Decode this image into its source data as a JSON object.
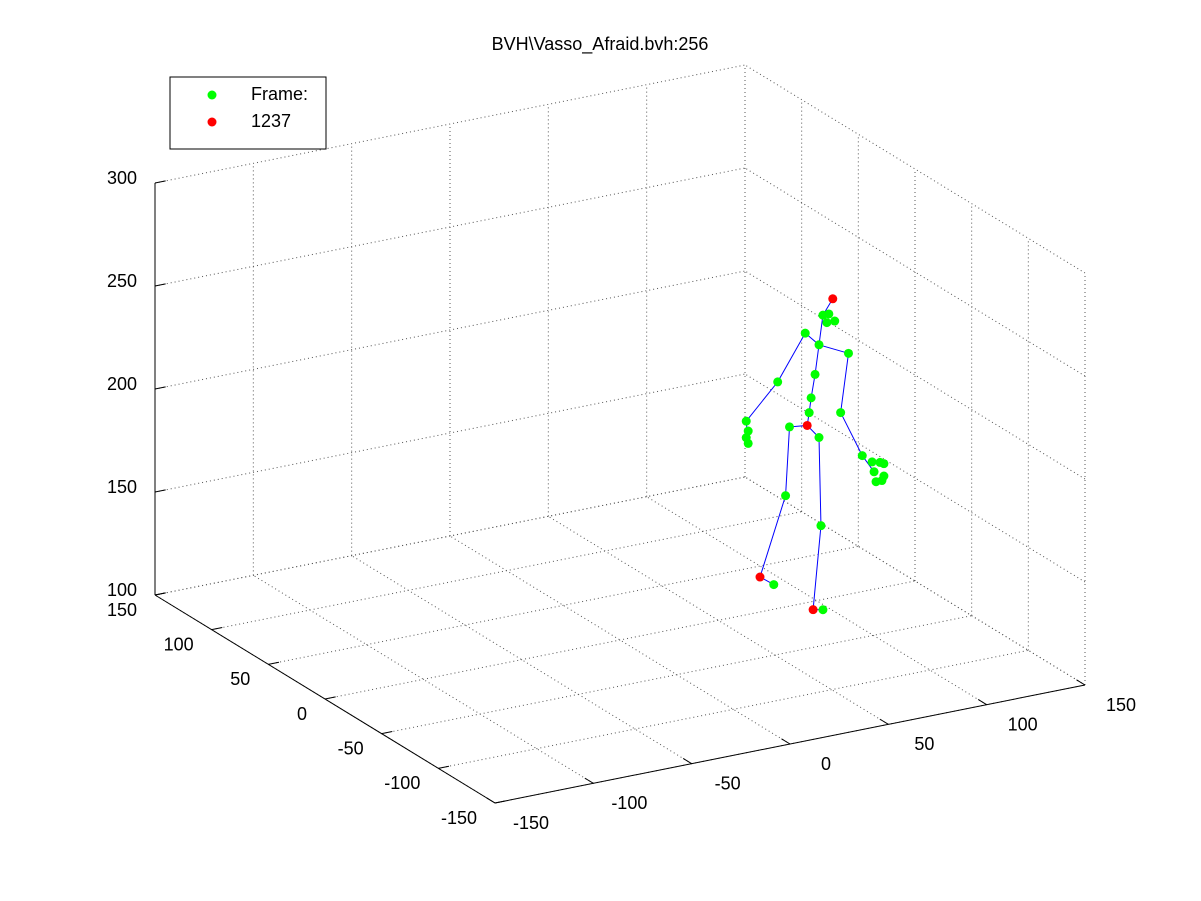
{
  "chart_data": {
    "type": "scatter3d",
    "title": "BVH\\Vasso_Afraid.bvh:256",
    "xlim": [
      -150,
      150
    ],
    "xticks": [
      -150,
      -100,
      -50,
      0,
      50,
      100,
      150
    ],
    "ylim": [
      -150,
      150
    ],
    "yticks": [
      -150,
      -100,
      -50,
      0,
      50,
      100,
      150
    ],
    "zlim": [
      100,
      300
    ],
    "zticks": [
      100,
      150,
      200,
      250,
      300
    ],
    "grid": true,
    "legend_position": "northwest",
    "series": [
      {
        "color": "#0000ff",
        "mode": "line",
        "x": [
          59,
          75,
          89,
          96,
          111,
          107,
          118,
          124,
          null,
          103,
          98,
          96,
          94,
          92,
          91,
          90,
          null,
          73,
          66,
          79,
          81,
          90,
          96,
          97,
          93,
          98,
          null,
          59,
          60
        ],
        "y": [
          -9,
          -9,
          -9,
          -9,
          -9,
          -9,
          -9,
          -9,
          null,
          -9,
          -9,
          -9,
          -9,
          -9,
          -9,
          -9,
          null,
          -9,
          -9,
          -9,
          -9,
          -9,
          -9,
          -9,
          -9,
          -9,
          null,
          -9,
          -9
        ],
        "z": [
          198,
          214,
          235,
          228,
          221,
          193,
          170,
          161,
          null,
          249,
          242,
          228,
          214,
          203,
          196,
          190,
          null,
          116,
          121,
          158,
          191,
          190,
          183,
          140,
          100,
          99,
          null,
          198,
          187
        ]
      },
      {
        "name": "Frame:",
        "color": "#00ff00",
        "mode": "markers",
        "x": [
          98,
          101,
          100,
          104,
          96,
          94,
          92,
          91,
          81,
          96,
          79,
          97,
          73,
          98,
          89,
          75,
          59,
          60,
          59,
          60,
          111,
          107,
          118,
          123,
          127,
          129,
          124,
          128,
          125,
          129
        ],
        "y": [
          -9,
          -9,
          -9,
          -9,
          -9,
          -9,
          -9,
          -9,
          -9,
          -9,
          -9,
          -9,
          -9,
          -9,
          -9,
          -9,
          -9,
          -9,
          -9,
          -9,
          -9,
          -9,
          -9,
          -9,
          -9,
          -9,
          -9,
          -9,
          -9,
          -9
        ],
        "z": [
          242,
          242,
          238,
          238,
          228,
          214,
          203,
          196,
          191,
          183,
          158,
          140,
          116,
          99,
          235,
          214,
          198,
          193,
          190,
          187,
          221,
          193,
          170,
          166,
          165,
          164,
          161,
          156,
          156,
          158
        ]
      },
      {
        "name": "1237",
        "color": "#ff0000",
        "mode": "markers",
        "x": [
          103,
          90,
          66,
          93
        ],
        "y": [
          -9,
          -9,
          -9,
          -9
        ],
        "z": [
          249,
          190,
          121,
          100
        ]
      }
    ]
  }
}
